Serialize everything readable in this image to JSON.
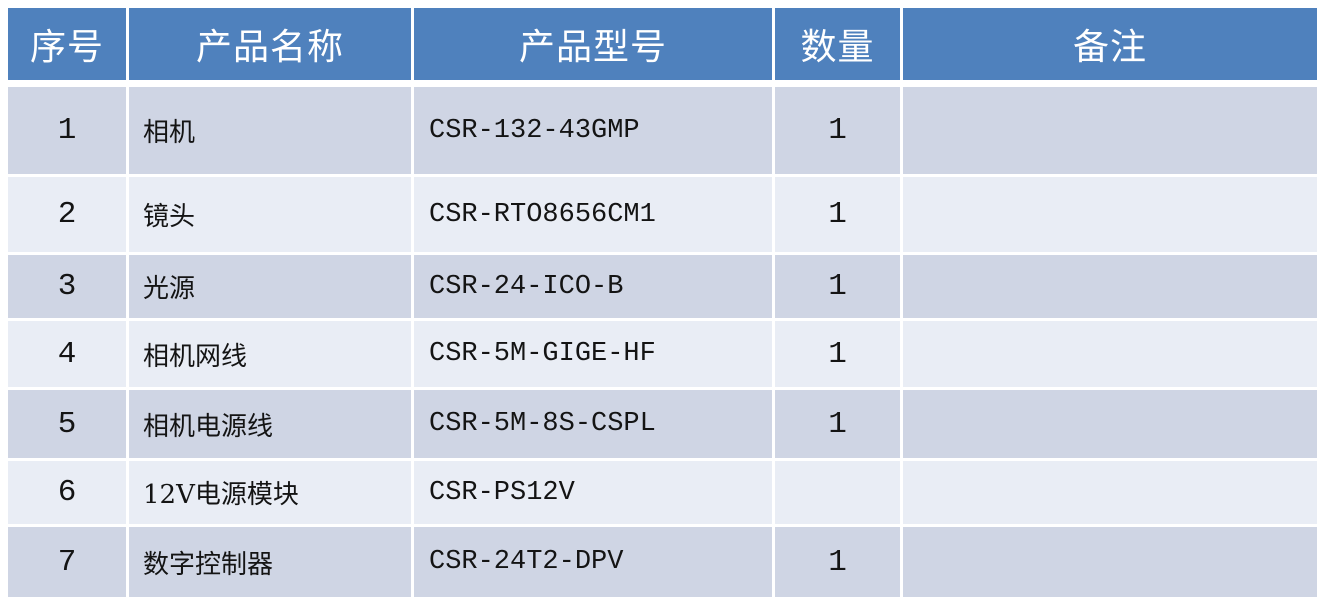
{
  "colors": {
    "header_bg": "#4f81bd",
    "header_text": "#ffffff",
    "row_odd": "#cfd5e4",
    "row_even": "#e9edf5",
    "text": "#141414",
    "gap": "#ffffff"
  },
  "table": {
    "columns": [
      {
        "key": "index",
        "label": "序号"
      },
      {
        "key": "name",
        "label": "产品名称"
      },
      {
        "key": "model",
        "label": "产品型号"
      },
      {
        "key": "qty",
        "label": "数量"
      },
      {
        "key": "remark",
        "label": "备注"
      }
    ],
    "rows": [
      {
        "index": "1",
        "name": "相机",
        "model": "CSR-132-43GMP",
        "qty": "1",
        "remark": ""
      },
      {
        "index": "2",
        "name": "镜头",
        "model": "CSR-RTO8656CM1",
        "qty": "1",
        "remark": ""
      },
      {
        "index": "3",
        "name": "光源",
        "model": "CSR-24-ICO-B",
        "qty": "1",
        "remark": ""
      },
      {
        "index": "4",
        "name": "相机网线",
        "model": "CSR-5M-GIGE-HF",
        "qty": "1",
        "remark": ""
      },
      {
        "index": "5",
        "name": "相机电源线",
        "model": "CSR-5M-8S-CSPL",
        "qty": "1",
        "remark": ""
      },
      {
        "index": "6",
        "name": "12V电源模块",
        "model": "CSR-PS12V",
        "qty": "",
        "remark": ""
      },
      {
        "index": "7",
        "name": "数字控制器",
        "model": "CSR-24T2-DPV",
        "qty": "1",
        "remark": ""
      }
    ]
  }
}
